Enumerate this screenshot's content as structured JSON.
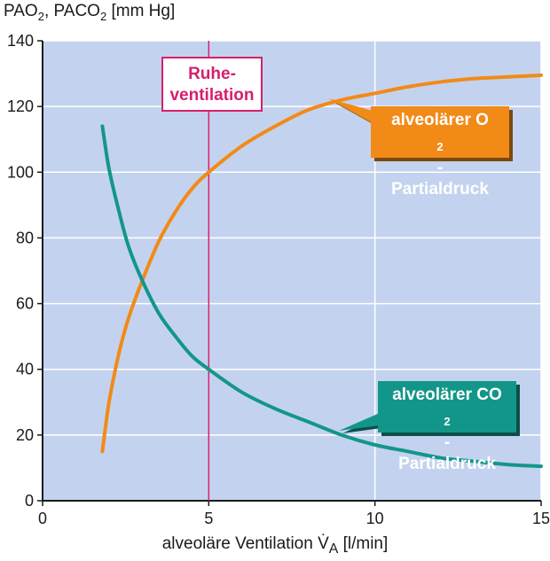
{
  "chart_data": {
    "type": "line",
    "ylabel": "PAO2, PACO2 [mm Hg]",
    "xlabel": "alveoläre Ventilation V̇A [l/min]",
    "xlim": [
      0,
      15
    ],
    "ylim": [
      0,
      140
    ],
    "x_ticks": [
      0,
      5,
      10,
      15
    ],
    "y_ticks": [
      0,
      20,
      40,
      60,
      80,
      100,
      120,
      140
    ],
    "grid": true,
    "reference_line": {
      "x": 5,
      "label": "Ruhe-ventilation",
      "color": "#d61f6c"
    },
    "series": [
      {
        "name": "alveolärer O2-Partialdruck",
        "color": "#f28a17",
        "x": [
          1.8,
          2.0,
          2.3,
          2.6,
          3.0,
          3.5,
          4.0,
          4.5,
          5.0,
          6.0,
          7.0,
          8.0,
          9.0,
          10.0,
          11.0,
          12.0,
          13.0,
          14.0,
          15.0
        ],
        "y": [
          15,
          30,
          45,
          56,
          67,
          79,
          88,
          95,
          100,
          108,
          114,
          119,
          122,
          124,
          126,
          127.5,
          128.5,
          129,
          129.5
        ]
      },
      {
        "name": "alveolärer CO2-Partialdruck",
        "color": "#13968a",
        "x": [
          1.8,
          2.0,
          2.3,
          2.6,
          3.0,
          3.5,
          4.0,
          4.5,
          5.0,
          6.0,
          7.0,
          8.0,
          9.0,
          10.0,
          11.0,
          12.0,
          13.0,
          14.0,
          15.0
        ],
        "y": [
          114,
          101,
          88,
          77,
          67,
          57,
          50,
          44,
          40,
          33,
          28,
          24,
          20,
          17,
          15,
          13,
          12,
          11,
          10.5
        ]
      }
    ]
  },
  "labels": {
    "ylabel_main": "PAO",
    "ylabel_sub1": "2",
    "ylabel_mid": ", PACO",
    "ylabel_sub2": "2",
    "ylabel_unit": " [mm Hg]",
    "xlabel_main": "alveoläre Ventilation V̇",
    "xlabel_sub": "A",
    "xlabel_unit": " [l/min]",
    "ruhe_line1": "Ruhe-",
    "ruhe_line2": "ventilation",
    "o2_line1": "alveolärer O",
    "o2_sub": "2",
    "o2_dash": "-",
    "o2_line2": "Partialdruck",
    "co2_line1": "alveolärer CO",
    "co2_sub": "2",
    "co2_dash": "-",
    "co2_line2": "Partialdruck"
  },
  "colors": {
    "plot_bg": "#c3d3ef",
    "grid": "#ffffff",
    "axis": "#1a1a1a",
    "o2_box": "#f28a17",
    "co2_box": "#13968a",
    "ruhe": "#d61f6c"
  }
}
